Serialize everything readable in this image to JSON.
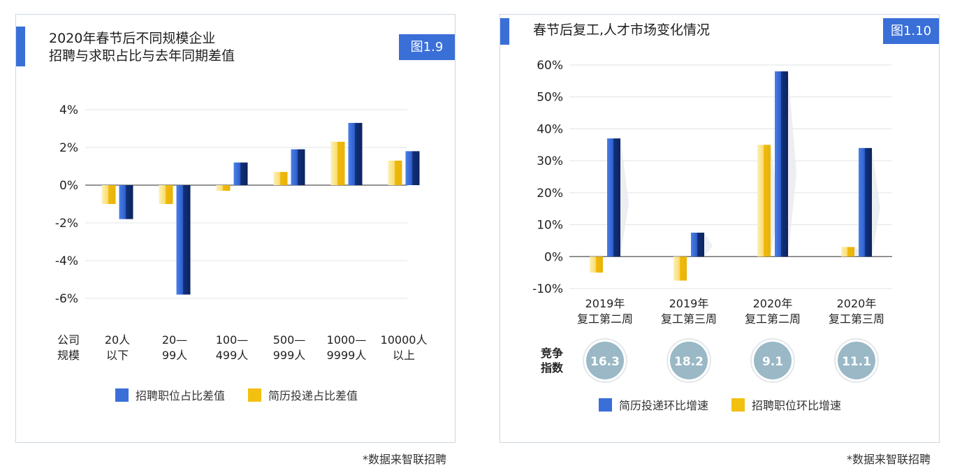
{
  "left_panel": {
    "title_line1": "2020年春节后不同规模企业",
    "title_line2": "招聘与求职占比与去年同期差值",
    "badge": "图1.9",
    "source": "*数据来智联招聘",
    "axis_label_line1": "公司",
    "axis_label_line2": "规模"
  },
  "right_panel": {
    "title": "春节后复工,人才市场变化情况",
    "badge": "图1.10",
    "source": "*数据来智联招聘",
    "competition_label_line1": "竞争",
    "competition_label_line2": "指数",
    "competition_values": [
      "16.3",
      "18.2",
      "9.1",
      "11.1"
    ]
  },
  "colors": {
    "blue": "#3a6fd8",
    "blue_dark": "#0f2c6e",
    "yellow": "#f2c010",
    "yellow_light": "#fbe9a6",
    "accent": "#3a6fd8",
    "bubble": "#9ab8c6"
  },
  "chart_data": [
    {
      "type": "bar",
      "categories": [
        [
          "20人",
          "以下"
        ],
        [
          "20—",
          "99人"
        ],
        [
          "100—",
          "499人"
        ],
        [
          "500—",
          "999人"
        ],
        [
          "1000—",
          "9999人"
        ],
        [
          "10000人",
          "以上"
        ]
      ],
      "series": [
        {
          "name": "简历投递占比差值",
          "color": "yellow",
          "values": [
            -1.0,
            -1.0,
            -0.3,
            0.7,
            2.3,
            1.3
          ]
        },
        {
          "name": "招聘职位占比差值",
          "color": "blue",
          "values": [
            -1.8,
            -5.8,
            1.2,
            1.9,
            3.3,
            1.8
          ]
        }
      ],
      "legend": [
        "招聘职位占比差值",
        "简历投递占比差值"
      ],
      "y_ticks": [
        "4%",
        "2%",
        "0%",
        "-2%",
        "-4%",
        "-6%"
      ],
      "ylim": [
        -6,
        4
      ],
      "grid": true
    },
    {
      "type": "bar",
      "categories": [
        [
          "2019年",
          "复工第二周"
        ],
        [
          "2019年",
          "复工第三周"
        ],
        [
          "2020年",
          "复工第二周"
        ],
        [
          "2020年",
          "复工第三周"
        ]
      ],
      "series": [
        {
          "name": "招聘职位环比增速",
          "color": "yellow",
          "values": [
            -5,
            -7.5,
            35,
            3
          ]
        },
        {
          "name": "简历投递环比增速",
          "color": "blue",
          "values": [
            37,
            7.5,
            58,
            34
          ]
        }
      ],
      "legend": [
        "简历投递环比增速",
        "招聘职位环比增速"
      ],
      "y_ticks": [
        "60%",
        "50%",
        "40%",
        "30%",
        "20%",
        "10%",
        "0%",
        "-10%"
      ],
      "ylim": [
        -10,
        60
      ],
      "grid": true
    }
  ]
}
